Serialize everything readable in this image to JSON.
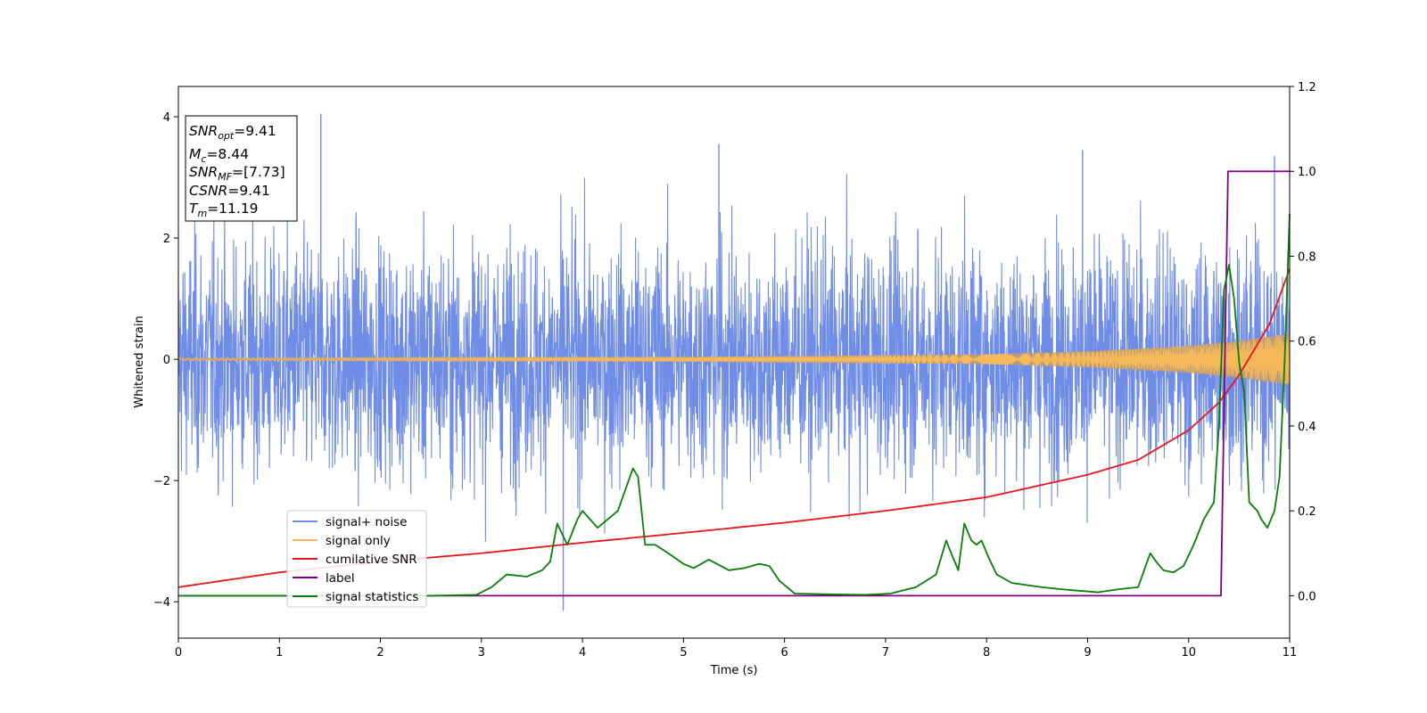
{
  "chart_data": {
    "type": "line",
    "xlabel": "Time (s)",
    "ylabel": "Whitened strain",
    "xlim": [
      0,
      11
    ],
    "ylim_left": [
      -4.6,
      4.5
    ],
    "ylim_right": [
      -0.1,
      1.2
    ],
    "x_ticks": [
      "0",
      "1",
      "2",
      "3",
      "4",
      "5",
      "6",
      "7",
      "8",
      "9",
      "10",
      "11"
    ],
    "y_ticks_left": [
      "4",
      "2",
      "0",
      "−2",
      "−4"
    ],
    "y_ticks_right": [
      "1.2",
      "1.0",
      "0.8",
      "0.6",
      "0.4",
      "0.2",
      "0.0"
    ],
    "legend_position": "lower-left",
    "info_box": {
      "snr_opt": {
        "base": "SNR",
        "sub": "opt",
        "value": "=9.41"
      },
      "mc": {
        "base": "M",
        "sub": "c",
        "value": "=8.44"
      },
      "snr_mf": {
        "base": "SNR",
        "sub": "MF",
        "value": "=[7.73]"
      },
      "csnr": {
        "base": "CSNR",
        "value": "=9.41"
      },
      "tm": {
        "base": "T",
        "sub": "m",
        "value": "=11.19"
      }
    },
    "series": [
      {
        "name": "signal+ noise",
        "axis": "left",
        "color": "#6f8ce6",
        "kind": "noise",
        "typical_abs": 1.5,
        "max_abs": 4.05,
        "min": -4.15,
        "notable_peaks": [
          [
            1.41,
            4.05
          ],
          [
            3.81,
            -4.15
          ],
          [
            5.35,
            3.55
          ],
          [
            8.95,
            3.45
          ],
          [
            10.85,
            3.35
          ]
        ]
      },
      {
        "name": "signal only",
        "axis": "left",
        "color": "#f5b95a",
        "kind": "chirp",
        "amplitude_envelope": [
          [
            0,
            0.02
          ],
          [
            5,
            0.04
          ],
          [
            8,
            0.08
          ],
          [
            9,
            0.13
          ],
          [
            10,
            0.22
          ],
          [
            10.5,
            0.3
          ],
          [
            11,
            0.42
          ]
        ]
      },
      {
        "name": "cumilative SNR",
        "axis": "right",
        "color": "#e8151b",
        "x": [
          0,
          1,
          2,
          3,
          4,
          5,
          6,
          7,
          8,
          9,
          9.5,
          10,
          10.3,
          10.5,
          10.8,
          11
        ],
        "values": [
          0.02,
          0.055,
          0.08,
          0.1,
          0.125,
          0.148,
          0.172,
          0.2,
          0.232,
          0.285,
          0.32,
          0.39,
          0.455,
          0.52,
          0.64,
          0.77
        ]
      },
      {
        "name": "label",
        "axis": "right",
        "color": "#800080",
        "x": [
          0,
          10.32,
          10.39,
          11
        ],
        "values": [
          0,
          0,
          1,
          1
        ]
      },
      {
        "name": "signal statistics",
        "axis": "right",
        "color": "#0a7d0a",
        "x": [
          0,
          2.5,
          2.95,
          3.1,
          3.25,
          3.45,
          3.6,
          3.68,
          3.75,
          3.85,
          3.95,
          4.0,
          4.15,
          4.25,
          4.35,
          4.5,
          4.55,
          4.62,
          4.72,
          4.85,
          5.0,
          5.1,
          5.25,
          5.45,
          5.6,
          5.75,
          5.85,
          5.95,
          6.1,
          6.5,
          6.8,
          7.05,
          7.3,
          7.5,
          7.6,
          7.65,
          7.72,
          7.78,
          7.85,
          7.9,
          7.95,
          8.02,
          8.1,
          8.25,
          8.4,
          8.55,
          8.75,
          8.9,
          9.1,
          9.3,
          9.5,
          9.62,
          9.68,
          9.75,
          9.85,
          9.95,
          10.05,
          10.15,
          10.25,
          10.3,
          10.35,
          10.4,
          10.45,
          10.5,
          10.55,
          10.6,
          10.68,
          10.72,
          10.78,
          10.85,
          10.9,
          10.95,
          11.0
        ],
        "values": [
          0,
          0,
          0.002,
          0.02,
          0.05,
          0.045,
          0.06,
          0.08,
          0.17,
          0.12,
          0.18,
          0.2,
          0.16,
          0.18,
          0.2,
          0.3,
          0.28,
          0.12,
          0.12,
          0.1,
          0.075,
          0.065,
          0.085,
          0.06,
          0.065,
          0.075,
          0.07,
          0.035,
          0.005,
          0.003,
          0.002,
          0.005,
          0.02,
          0.05,
          0.13,
          0.1,
          0.06,
          0.17,
          0.13,
          0.12,
          0.13,
          0.09,
          0.05,
          0.03,
          0.025,
          0.02,
          0.015,
          0.012,
          0.008,
          0.015,
          0.02,
          0.1,
          0.08,
          0.06,
          0.055,
          0.07,
          0.12,
          0.18,
          0.22,
          0.4,
          0.72,
          0.78,
          0.7,
          0.55,
          0.48,
          0.22,
          0.2,
          0.18,
          0.16,
          0.2,
          0.28,
          0.55,
          0.9
        ]
      }
    ]
  }
}
